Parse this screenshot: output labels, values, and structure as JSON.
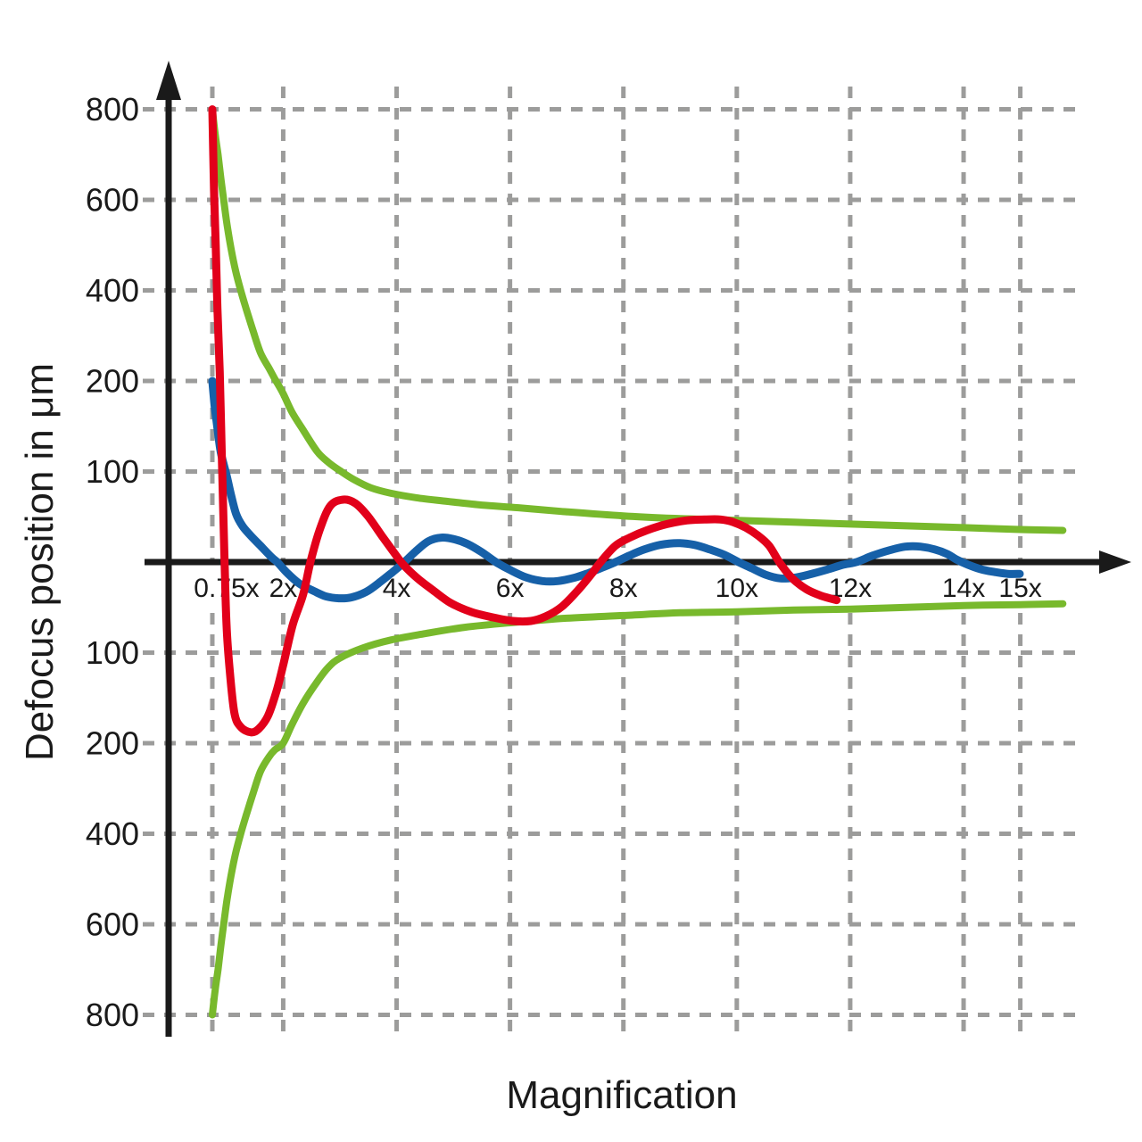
{
  "figure": {
    "background": "#ffffff"
  },
  "colors": {
    "red_curve": "#e2001a",
    "blue_curve": "#1660a8",
    "green_envelope": "#78b92c",
    "axis": "#1a1a1a",
    "grid": "#9c9c9b",
    "text": "#1a1a1a"
  },
  "chart_data": {
    "type": "line",
    "title": "",
    "xlabel": "Magnification",
    "ylabel": "Defocus position in μm",
    "grid": true,
    "legend": false,
    "x_range": [
      0.75,
      15.8
    ],
    "x_ticks": [
      {
        "mag": 0.75,
        "label": "0.75x"
      },
      {
        "mag": 2,
        "label": "2x"
      },
      {
        "mag": 4,
        "label": "4x"
      },
      {
        "mag": 6,
        "label": "6x"
      },
      {
        "mag": 8,
        "label": "8x"
      },
      {
        "mag": 10,
        "label": "10x"
      },
      {
        "mag": 12,
        "label": "12x"
      },
      {
        "mag": 14,
        "label": "14x"
      },
      {
        "mag": 15,
        "label": "15x"
      }
    ],
    "y_ticks": [
      {
        "value": 800,
        "label": "800"
      },
      {
        "value": 600,
        "label": "600"
      },
      {
        "value": 400,
        "label": "400"
      },
      {
        "value": 200,
        "label": "200"
      },
      {
        "value": 100,
        "label": "100"
      },
      {
        "value": -100,
        "label": "100"
      },
      {
        "value": -200,
        "label": "200"
      },
      {
        "value": -400,
        "label": "400"
      },
      {
        "value": -600,
        "label": "600"
      },
      {
        "value": -800,
        "label": "800"
      }
    ],
    "y_scale": {
      "type": "symmetric-nonlinear",
      "stops": [
        0,
        100,
        200,
        400,
        600,
        800
      ],
      "note": "labeled gridlines are equidistant although values are 100/200/400/600/800"
    },
    "series": [
      {
        "name": "tolerance-envelope-upper",
        "color": "#78b92c",
        "stroke_width": 8,
        "points": [
          [
            0.75,
            800
          ],
          [
            0.8,
            745
          ],
          [
            0.85,
            700
          ],
          [
            0.9,
            648
          ],
          [
            0.95,
            600
          ],
          [
            1.01,
            545
          ],
          [
            1.08,
            492
          ],
          [
            1.16,
            443
          ],
          [
            1.25,
            400
          ],
          [
            1.35,
            358
          ],
          [
            1.47,
            310
          ],
          [
            1.6,
            262
          ],
          [
            1.75,
            228
          ],
          [
            1.85,
            205
          ],
          [
            2.0,
            186
          ],
          [
            2.15,
            166
          ],
          [
            2.35,
            146
          ],
          [
            2.6,
            122
          ],
          [
            2.8,
            110
          ],
          [
            3.0,
            101
          ],
          [
            3.25,
            91
          ],
          [
            3.55,
            82
          ],
          [
            3.9,
            76
          ],
          [
            4.35,
            71
          ],
          [
            4.9,
            67
          ],
          [
            5.5,
            63
          ],
          [
            6.15,
            60
          ],
          [
            6.9,
            56
          ],
          [
            8.0,
            51
          ],
          [
            9.0,
            48
          ],
          [
            10.0,
            46
          ],
          [
            11.0,
            44
          ],
          [
            12.0,
            42
          ],
          [
            13.0,
            40
          ],
          [
            14.0,
            38
          ],
          [
            15.0,
            36
          ],
          [
            15.75,
            35
          ]
        ]
      },
      {
        "name": "tolerance-envelope-lower",
        "color": "#78b92c",
        "stroke_width": 8,
        "points": [
          [
            0.75,
            -800
          ],
          [
            0.8,
            -745
          ],
          [
            0.85,
            -700
          ],
          [
            0.9,
            -648
          ],
          [
            0.95,
            -600
          ],
          [
            1.01,
            -545
          ],
          [
            1.08,
            -492
          ],
          [
            1.16,
            -443
          ],
          [
            1.25,
            -400
          ],
          [
            1.35,
            -358
          ],
          [
            1.47,
            -310
          ],
          [
            1.6,
            -262
          ],
          [
            1.75,
            -230
          ],
          [
            1.85,
            -215
          ],
          [
            2.0,
            -200
          ],
          [
            2.15,
            -180
          ],
          [
            2.35,
            -156
          ],
          [
            2.6,
            -132
          ],
          [
            2.8,
            -116
          ],
          [
            3.0,
            -106
          ],
          [
            3.4,
            -95
          ],
          [
            3.9,
            -86
          ],
          [
            4.5,
            -79
          ],
          [
            5.2,
            -72
          ],
          [
            6.0,
            -67
          ],
          [
            7.0,
            -62
          ],
          [
            8.0,
            -59
          ],
          [
            9.0,
            -56
          ],
          [
            10.0,
            -55
          ],
          [
            11.0,
            -53
          ],
          [
            12.0,
            -52
          ],
          [
            13.0,
            -50
          ],
          [
            14.0,
            -48
          ],
          [
            15.0,
            -47
          ],
          [
            15.75,
            -46
          ]
        ]
      },
      {
        "name": "defocus-curve-blue",
        "color": "#1660a8",
        "stroke_width": 9,
        "points": [
          [
            0.75,
            200
          ],
          [
            0.79,
            173
          ],
          [
            0.84,
            148
          ],
          [
            0.9,
            121
          ],
          [
            1.0,
            96
          ],
          [
            1.08,
            74
          ],
          [
            1.17,
            53
          ],
          [
            1.28,
            40
          ],
          [
            1.43,
            29
          ],
          [
            1.6,
            18
          ],
          [
            1.8,
            5
          ],
          [
            1.91,
            -1
          ],
          [
            2.07,
            -12
          ],
          [
            2.29,
            -24
          ],
          [
            2.54,
            -32
          ],
          [
            2.76,
            -38
          ],
          [
            2.98,
            -40
          ],
          [
            3.2,
            -39
          ],
          [
            3.46,
            -33
          ],
          [
            3.69,
            -23
          ],
          [
            3.93,
            -11
          ],
          [
            4.12,
            -1
          ],
          [
            4.34,
            12
          ],
          [
            4.56,
            23
          ],
          [
            4.79,
            27
          ],
          [
            5.03,
            25
          ],
          [
            5.25,
            20
          ],
          [
            5.5,
            11
          ],
          [
            5.75,
            0
          ],
          [
            6.01,
            -9
          ],
          [
            6.29,
            -17
          ],
          [
            6.57,
            -21
          ],
          [
            6.84,
            -21
          ],
          [
            7.15,
            -17
          ],
          [
            7.39,
            -12
          ],
          [
            7.63,
            -6
          ],
          [
            7.86,
            0
          ],
          [
            8.1,
            7
          ],
          [
            8.37,
            14
          ],
          [
            8.65,
            19
          ],
          [
            8.96,
            21
          ],
          [
            9.25,
            19
          ],
          [
            9.52,
            14
          ],
          [
            9.78,
            8
          ],
          [
            10.03,
            0
          ],
          [
            10.27,
            -7
          ],
          [
            10.51,
            -14
          ],
          [
            10.77,
            -18
          ],
          [
            11.04,
            -17
          ],
          [
            11.32,
            -13
          ],
          [
            11.61,
            -8
          ],
          [
            11.87,
            -3
          ],
          [
            12.11,
            0
          ],
          [
            12.39,
            7
          ],
          [
            12.69,
            13
          ],
          [
            12.97,
            17
          ],
          [
            13.24,
            17
          ],
          [
            13.49,
            14
          ],
          [
            13.71,
            9
          ],
          [
            13.87,
            3
          ],
          [
            14.08,
            -3
          ],
          [
            14.31,
            -8
          ],
          [
            14.55,
            -11
          ],
          [
            14.78,
            -13
          ],
          [
            14.99,
            -13
          ]
        ]
      },
      {
        "name": "defocus-curve-red",
        "color": "#e2001a",
        "stroke_width": 9,
        "points": [
          [
            0.75,
            800
          ],
          [
            0.78,
            620
          ],
          [
            0.81,
            500
          ],
          [
            0.84,
            360
          ],
          [
            0.88,
            220
          ],
          [
            0.92,
            110
          ],
          [
            0.96,
            15
          ],
          [
            1.0,
            -69
          ],
          [
            1.06,
            -122
          ],
          [
            1.14,
            -167
          ],
          [
            1.25,
            -182
          ],
          [
            1.43,
            -188
          ],
          [
            1.57,
            -184
          ],
          [
            1.73,
            -170
          ],
          [
            1.88,
            -143
          ],
          [
            2.01,
            -111
          ],
          [
            2.17,
            -69
          ],
          [
            2.35,
            -36
          ],
          [
            2.48,
            0
          ],
          [
            2.64,
            35
          ],
          [
            2.83,
            62
          ],
          [
            3.06,
            69
          ],
          [
            3.27,
            65
          ],
          [
            3.49,
            51
          ],
          [
            3.74,
            29
          ],
          [
            3.96,
            10
          ],
          [
            4.12,
            -3
          ],
          [
            4.37,
            -18
          ],
          [
            4.64,
            -31
          ],
          [
            4.95,
            -45
          ],
          [
            5.31,
            -55
          ],
          [
            5.69,
            -61
          ],
          [
            6.05,
            -65
          ],
          [
            6.37,
            -65
          ],
          [
            6.63,
            -60
          ],
          [
            6.92,
            -49
          ],
          [
            7.2,
            -31
          ],
          [
            7.44,
            -13
          ],
          [
            7.61,
            1
          ],
          [
            7.86,
            18
          ],
          [
            8.11,
            27
          ],
          [
            8.41,
            35
          ],
          [
            8.77,
            42
          ],
          [
            9.12,
            46
          ],
          [
            9.43,
            47
          ],
          [
            9.72,
            47
          ],
          [
            9.94,
            44
          ],
          [
            10.16,
            38
          ],
          [
            10.38,
            29
          ],
          [
            10.57,
            18
          ],
          [
            10.76,
            -1
          ],
          [
            10.98,
            -18
          ],
          [
            11.23,
            -30
          ],
          [
            11.48,
            -37
          ],
          [
            11.76,
            -42
          ]
        ]
      }
    ]
  }
}
